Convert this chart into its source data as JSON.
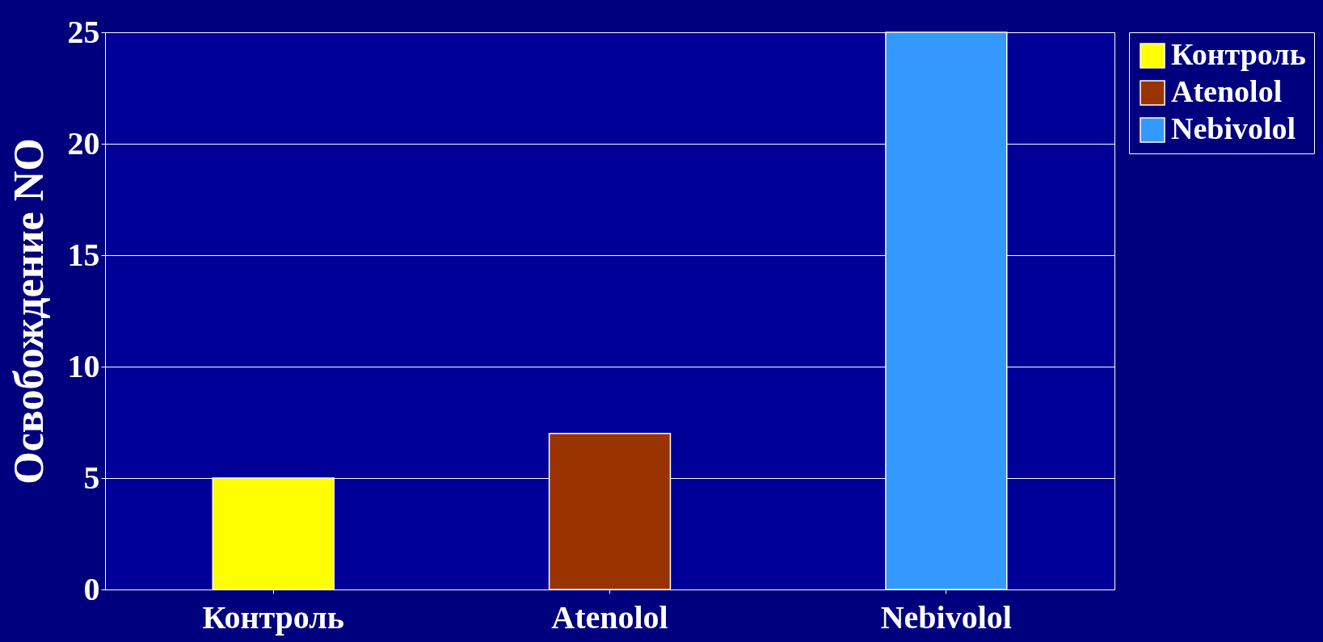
{
  "chart_data": {
    "type": "bar",
    "ylabel": "Освобождение NO",
    "categories": [
      "Контроль",
      "Atenolol",
      "Nebivolol"
    ],
    "series": [
      {
        "name": "Контроль",
        "color": "#ffff00",
        "values": [
          5,
          null,
          null
        ]
      },
      {
        "name": "Atenolol",
        "color": "#993300",
        "values": [
          null,
          7,
          null
        ]
      },
      {
        "name": "Nebivolol",
        "color": "#3399ff",
        "values": [
          null,
          null,
          25
        ]
      }
    ],
    "ylim": [
      0,
      25
    ],
    "yticks": [
      0,
      5,
      10,
      15,
      20,
      25
    ],
    "grid": "y",
    "legend": "right"
  }
}
